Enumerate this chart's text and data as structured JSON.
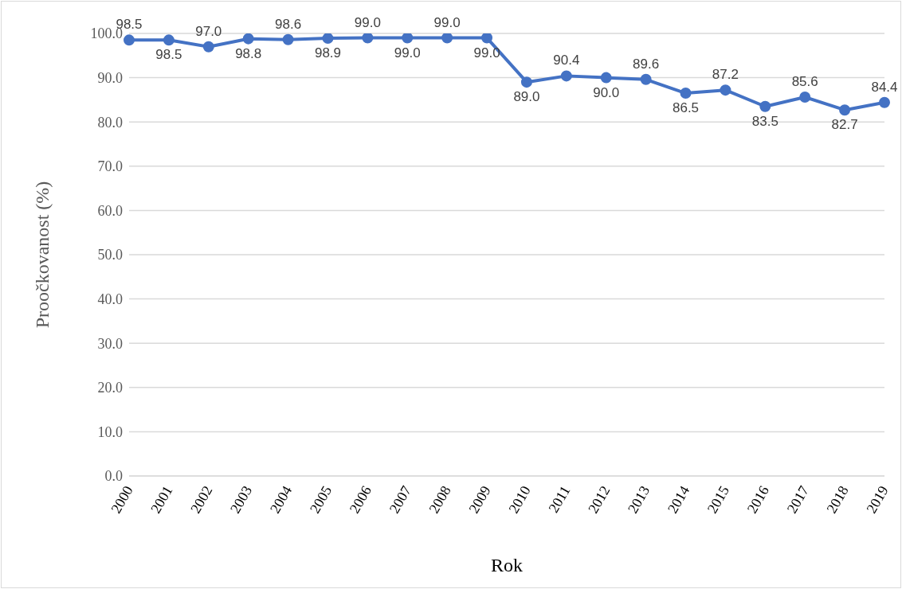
{
  "chart_data": {
    "type": "line",
    "xlabel": "Rok",
    "ylabel": "Proočkovanost (%)",
    "categories": [
      "2000",
      "2001",
      "2002",
      "2003",
      "2004",
      "2005",
      "2006",
      "2007",
      "2008",
      "2009",
      "2010",
      "2011",
      "2012",
      "2013",
      "2014",
      "2015",
      "2016",
      "2017",
      "2018",
      "2019"
    ],
    "series": [
      {
        "color": "#4472c4",
        "values": [
          98.5,
          98.5,
          97.0,
          98.8,
          98.6,
          98.9,
          99.0,
          99.0,
          99.0,
          99.0,
          89.0,
          90.4,
          90.0,
          89.6,
          86.5,
          87.2,
          83.5,
          85.6,
          82.7,
          84.4
        ],
        "value_labels": [
          "98.5",
          "98.5",
          "97.0",
          "98.8",
          "98.6",
          "98.9",
          "99.0",
          "99.0",
          "99.0",
          "99.0",
          "89.0",
          "90.4",
          "90.0",
          "89.6",
          "86.5",
          "87.2",
          "83.5",
          "85.6",
          "82.7",
          "84.4"
        ]
      }
    ],
    "ylim": [
      0,
      100
    ],
    "yticks": [
      {
        "value": 0,
        "label": "0.0"
      },
      {
        "value": 10,
        "label": "10.0"
      },
      {
        "value": 20,
        "label": "20.0"
      },
      {
        "value": 30,
        "label": "30.0"
      },
      {
        "value": 40,
        "label": "40.0"
      },
      {
        "value": 50,
        "label": "50.0"
      },
      {
        "value": 60,
        "label": "60.0"
      },
      {
        "value": 70,
        "label": "70.0"
      },
      {
        "value": 80,
        "label": "80.0"
      },
      {
        "value": 90,
        "label": "90.0"
      },
      {
        "value": 100,
        "label": "100.0"
      }
    ],
    "grid": "y",
    "marker": "circle",
    "line_style": "solid",
    "legend": false
  }
}
